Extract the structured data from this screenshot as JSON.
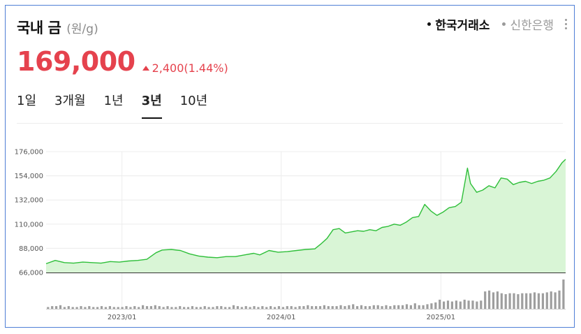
{
  "header": {
    "title": "국내 금",
    "unit": "(원/g)",
    "sources": [
      {
        "label": "한국거래소",
        "active": true
      },
      {
        "label": "신한은행",
        "active": false
      }
    ]
  },
  "quote": {
    "price": "169,000",
    "change": "2,400",
    "change_pct": "(1.44%)"
  },
  "tabs": [
    {
      "label": "1일",
      "active": false
    },
    {
      "label": "3개월",
      "active": false
    },
    {
      "label": "1년",
      "active": false
    },
    {
      "label": "3년",
      "active": true
    },
    {
      "label": "10년",
      "active": false
    }
  ],
  "colors": {
    "line": "#2fbf3a",
    "fill": "#d9f5d6",
    "volume": "#9e9e9e",
    "up": "#e5424d"
  },
  "chart_data": {
    "type": "area",
    "title": "",
    "xlabel": "",
    "ylabel": "",
    "ylim": [
      66000,
      176000
    ],
    "y_ticks": [
      "176,000",
      "154,000",
      "132,000",
      "110,000",
      "88,000",
      "66,000"
    ],
    "y_tick_values": [
      176000,
      154000,
      132000,
      110000,
      88000,
      66000
    ],
    "x_ticks": [
      "2023/01",
      "2024/01",
      "2025/01"
    ],
    "x_tick_dates": [
      "2023-01-01",
      "2024-01-01",
      "2025-01-01"
    ],
    "x_range": [
      "2022-07-11",
      "2025-10-14"
    ],
    "grid": true,
    "series": [
      {
        "values": [
          [
            "2022-07-11",
            74000
          ],
          [
            "2022-08-01",
            77000
          ],
          [
            "2022-08-22",
            75000
          ],
          [
            "2022-09-12",
            74500
          ],
          [
            "2022-10-03",
            75500
          ],
          [
            "2022-10-24",
            75000
          ],
          [
            "2022-11-14",
            74500
          ],
          [
            "2022-12-05",
            76000
          ],
          [
            "2022-12-26",
            75500
          ],
          [
            "2023-01-16",
            76500
          ],
          [
            "2023-02-06",
            77000
          ],
          [
            "2023-02-27",
            78000
          ],
          [
            "2023-03-20",
            84000
          ],
          [
            "2023-04-03",
            86500
          ],
          [
            "2023-04-24",
            87000
          ],
          [
            "2023-05-15",
            86000
          ],
          [
            "2023-06-05",
            83000
          ],
          [
            "2023-06-26",
            81000
          ],
          [
            "2023-07-17",
            80000
          ],
          [
            "2023-08-07",
            79500
          ],
          [
            "2023-08-28",
            80500
          ],
          [
            "2023-09-18",
            80500
          ],
          [
            "2023-10-09",
            82000
          ],
          [
            "2023-10-30",
            83500
          ],
          [
            "2023-11-13",
            82000
          ],
          [
            "2023-12-04",
            86000
          ],
          [
            "2023-12-25",
            84500
          ],
          [
            "2024-01-15",
            85000
          ],
          [
            "2024-02-05",
            86000
          ],
          [
            "2024-02-26",
            87000
          ],
          [
            "2024-03-18",
            87500
          ],
          [
            "2024-04-01",
            92000
          ],
          [
            "2024-04-15",
            97000
          ],
          [
            "2024-04-29",
            105000
          ],
          [
            "2024-05-13",
            106000
          ],
          [
            "2024-05-27",
            102000
          ],
          [
            "2024-06-10",
            103000
          ],
          [
            "2024-06-24",
            104000
          ],
          [
            "2024-07-08",
            103500
          ],
          [
            "2024-07-22",
            105000
          ],
          [
            "2024-08-05",
            104000
          ],
          [
            "2024-08-19",
            107000
          ],
          [
            "2024-09-02",
            108000
          ],
          [
            "2024-09-16",
            110000
          ],
          [
            "2024-09-30",
            109000
          ],
          [
            "2024-10-14",
            112000
          ],
          [
            "2024-10-28",
            116000
          ],
          [
            "2024-11-11",
            117000
          ],
          [
            "2024-11-25",
            128000
          ],
          [
            "2024-12-09",
            122000
          ],
          [
            "2024-12-23",
            118000
          ],
          [
            "2025-01-06",
            121000
          ],
          [
            "2025-01-20",
            125000
          ],
          [
            "2025-02-03",
            126000
          ],
          [
            "2025-02-17",
            130000
          ],
          [
            "2025-03-03",
            161000
          ],
          [
            "2025-03-10",
            147000
          ],
          [
            "2025-03-24",
            139000
          ],
          [
            "2025-04-07",
            141000
          ],
          [
            "2025-04-21",
            145000
          ],
          [
            "2025-05-05",
            143000
          ],
          [
            "2025-05-19",
            152000
          ],
          [
            "2025-06-02",
            151000
          ],
          [
            "2025-06-16",
            146000
          ],
          [
            "2025-06-30",
            148000
          ],
          [
            "2025-07-14",
            149000
          ],
          [
            "2025-07-28",
            147000
          ],
          [
            "2025-08-11",
            149000
          ],
          [
            "2025-08-25",
            150000
          ],
          [
            "2025-09-08",
            152000
          ],
          [
            "2025-09-22",
            158000
          ],
          [
            "2025-10-06",
            166000
          ],
          [
            "2025-10-14",
            169000
          ]
        ]
      }
    ],
    "volume": [
      2,
      3,
      3,
      4,
      2,
      3,
      2,
      2,
      3,
      2,
      3,
      2,
      2,
      3,
      2,
      3,
      2,
      2,
      2,
      3,
      2,
      3,
      2,
      4,
      3,
      3,
      4,
      3,
      2,
      3,
      2,
      2,
      3,
      2,
      2,
      3,
      2,
      2,
      3,
      2,
      2,
      3,
      3,
      2,
      2,
      4,
      3,
      2,
      3,
      2,
      3,
      2,
      3,
      2,
      3,
      2,
      3,
      2,
      3,
      3,
      2,
      3,
      3,
      4,
      3,
      3,
      3,
      4,
      3,
      3,
      3,
      4,
      3,
      4,
      5,
      3,
      4,
      3,
      3,
      4,
      4,
      3,
      4,
      3,
      4,
      4,
      4,
      5,
      4,
      6,
      4,
      4,
      5,
      6,
      7,
      10,
      8,
      9,
      8,
      9,
      8,
      10,
      9,
      9,
      8,
      9,
      19,
      20,
      18,
      19,
      17,
      16,
      17,
      17,
      16,
      17,
      17,
      17,
      18,
      17,
      17,
      18,
      19,
      18,
      20,
      32
    ]
  }
}
